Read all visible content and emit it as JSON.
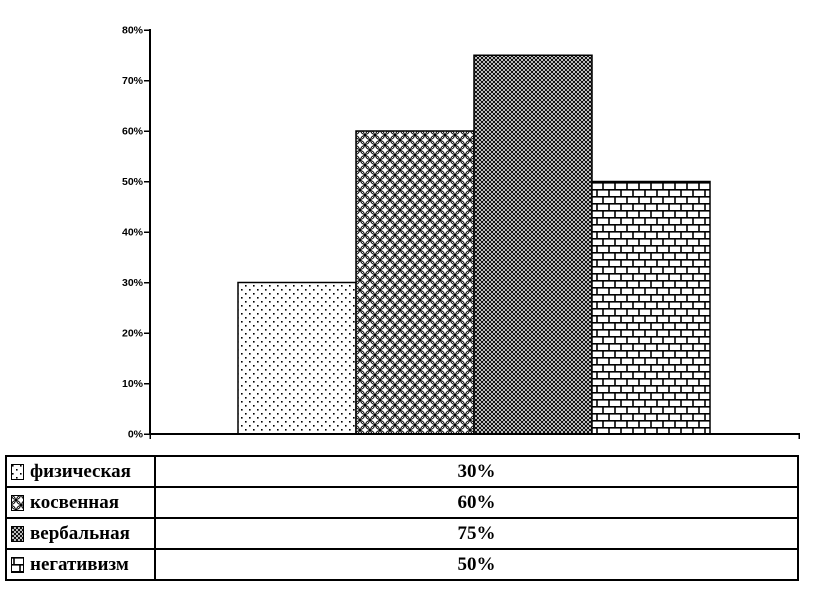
{
  "chart_data": {
    "type": "bar",
    "title": "",
    "categories": [
      "физическая",
      "косвенная",
      "вербальная",
      "негативизм"
    ],
    "series": [
      {
        "label": "физическая",
        "value": 30,
        "display": "30%",
        "pattern": "dots"
      },
      {
        "label": "косвенная",
        "value": 60,
        "display": "60%",
        "pattern": "scales"
      },
      {
        "label": "вербальная",
        "value": 75,
        "display": "75%",
        "pattern": "dense-check"
      },
      {
        "label": "негативизм",
        "value": 50,
        "display": "50%",
        "pattern": "bricks"
      }
    ],
    "ylim": [
      0,
      80
    ],
    "yticks": [
      "0%",
      "10%",
      "20%",
      "30%",
      "40%",
      "50%",
      "60%",
      "70%",
      "80%"
    ],
    "xlabel": "",
    "ylabel": "",
    "grid": false,
    "legend_position": "bottom-table"
  },
  "colors": {
    "ink": "#000000",
    "background": "#ffffff"
  }
}
